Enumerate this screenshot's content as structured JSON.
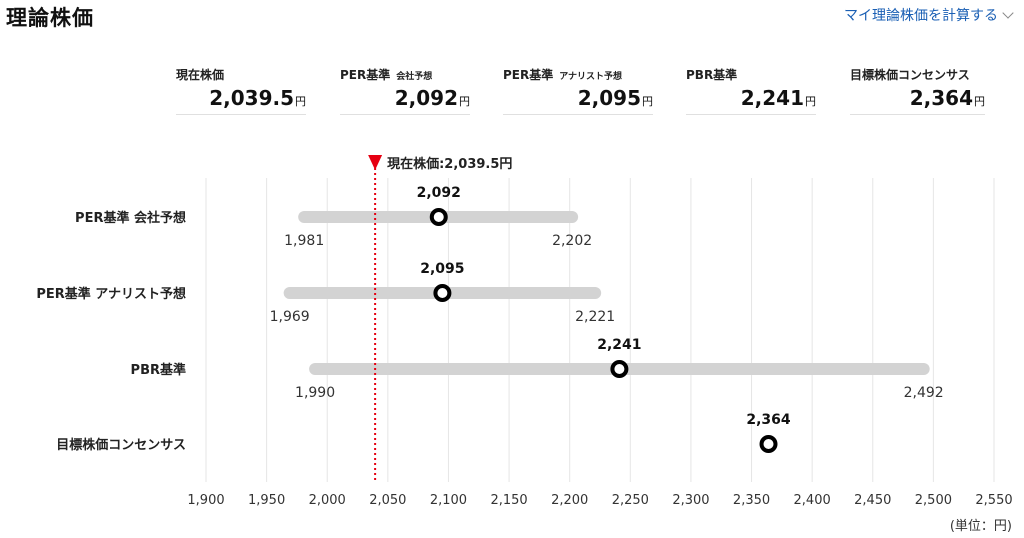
{
  "header": {
    "title": "理論株価",
    "calc_link": "マイ理論株価を計算する"
  },
  "summary": [
    {
      "label": "現在株価",
      "sublabel": "",
      "value": "2,039.5",
      "unit": "円"
    },
    {
      "label": "PER基準",
      "sublabel": "会社予想",
      "value": "2,092",
      "unit": "円"
    },
    {
      "label": "PER基準",
      "sublabel": "アナリスト予想",
      "value": "2,095",
      "unit": "円"
    },
    {
      "label": "PBR基準",
      "sublabel": "",
      "value": "2,241",
      "unit": "円"
    },
    {
      "label": "目標株価コンセンサス",
      "sublabel": "",
      "value": "2,364",
      "unit": "円"
    }
  ],
  "unit_note": "(単位：円)",
  "chart_data": {
    "type": "range-dot",
    "xlim": [
      1900,
      2550
    ],
    "xticks": [
      1900,
      1950,
      2000,
      2050,
      2100,
      2150,
      2200,
      2250,
      2300,
      2350,
      2400,
      2450,
      2500,
      2550
    ],
    "xtick_labels": [
      "1,900",
      "1,950",
      "2,000",
      "2,050",
      "2,100",
      "2,150",
      "2,200",
      "2,250",
      "2,300",
      "2,350",
      "2,400",
      "2,450",
      "2,500",
      "2,550"
    ],
    "current_price": {
      "label": "現在株価:2,039.5円",
      "value": 2039.5,
      "color": "#e60012"
    },
    "rows": [
      {
        "label": "PER基準 会社予想",
        "low": 1981,
        "high": 2202,
        "value": 2092,
        "low_label": "1,981",
        "high_label": "2,202",
        "value_label": "2,092"
      },
      {
        "label": "PER基準 アナリスト予想",
        "low": 1969,
        "high": 2221,
        "value": 2095,
        "low_label": "1,969",
        "high_label": "2,221",
        "value_label": "2,095"
      },
      {
        "label": "PBR基準",
        "low": 1990,
        "high": 2492,
        "value": 2241,
        "low_label": "1,990",
        "high_label": "2,492",
        "value_label": "2,241"
      },
      {
        "label": "目標株価コンセンサス",
        "low": null,
        "high": null,
        "value": 2364,
        "low_label": "",
        "high_label": "",
        "value_label": "2,364"
      }
    ],
    "colors": {
      "range": "#d3d3d3",
      "grid": "#e6e6e6",
      "marker": "#000000"
    }
  }
}
